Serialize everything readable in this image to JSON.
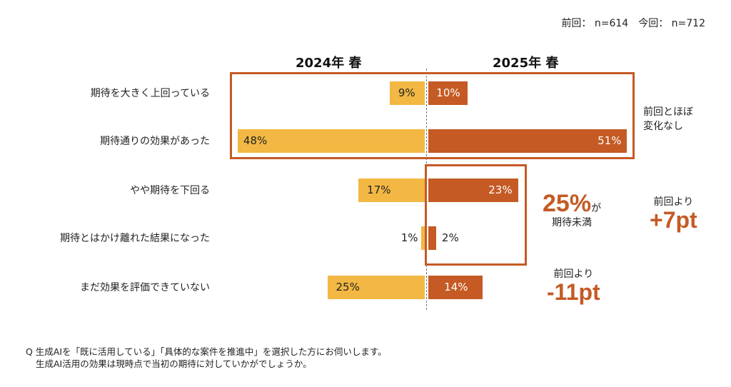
{
  "sample_note": "前回： n=614　今回： n=712",
  "chart_data": {
    "type": "bar",
    "orientation": "horizontal-butterfly",
    "categories": [
      "期待を大きく上回っている",
      "期待通りの効果があった",
      "やや期待を下回る",
      "期待とはかけ離れた結果になった",
      "まだ効果を評価できていない"
    ],
    "series": [
      {
        "name": "2024年 春",
        "values": [
          9,
          48,
          17,
          1,
          25
        ],
        "labels": [
          "9%",
          "48%",
          "17%",
          "1%",
          "25%"
        ],
        "color": "#F2B843"
      },
      {
        "name": "2025年 春",
        "values": [
          10,
          51,
          23,
          2,
          14
        ],
        "labels": [
          "10%",
          "51%",
          "23%",
          "2%",
          "14%"
        ],
        "color": "#C55A24"
      }
    ],
    "xlim": [
      0,
      51
    ]
  },
  "annotations": {
    "top": [
      "前回とほぼ",
      "変化なし"
    ],
    "mid_big": "25%",
    "mid_suffix": "が",
    "mid_sub": "期待未満",
    "mid_right_label": "前回より",
    "mid_right_big": "+7pt",
    "bottom_label": "前回より",
    "bottom_big": "-11pt"
  },
  "footnote": [
    "Q 生成AIを「既に活用している」「具体的な案件を推進中」を選択した方にお伺いします。",
    "生成AI活用の効果は現時点で当初の期待に対していかがでしょうか。"
  ]
}
